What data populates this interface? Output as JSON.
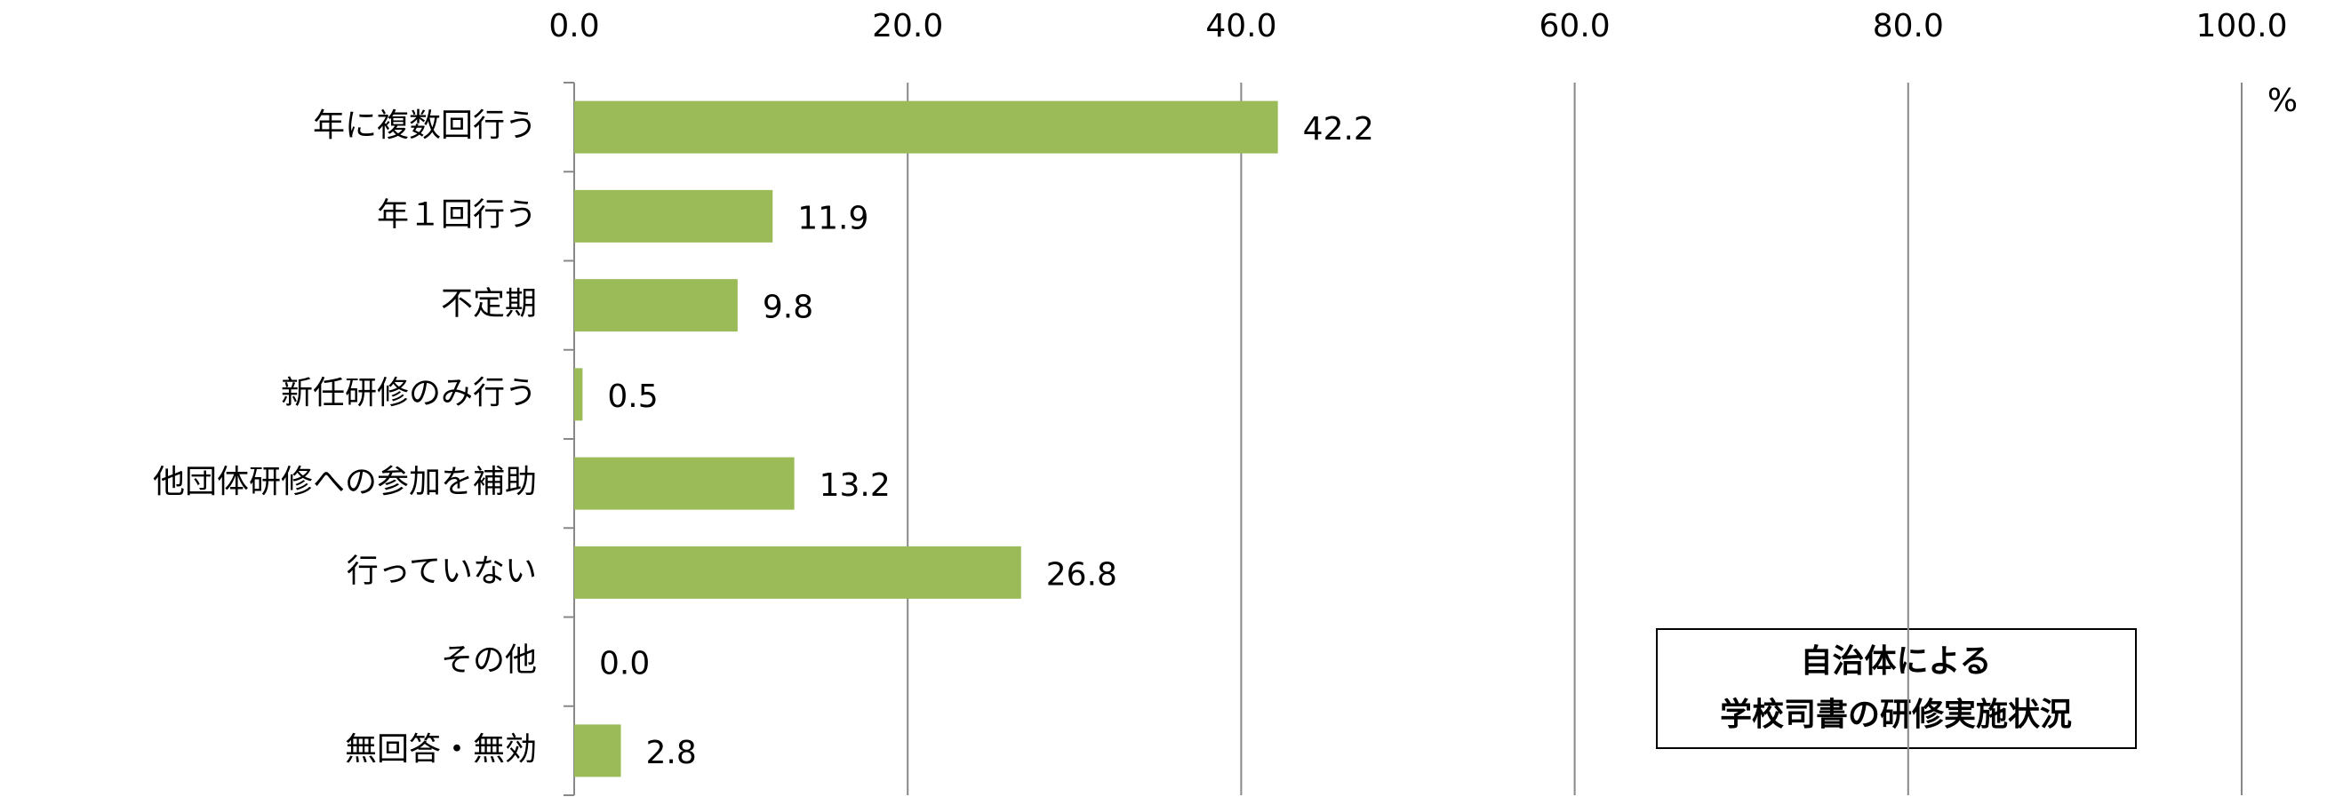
{
  "chart_data": {
    "type": "bar",
    "orientation": "horizontal",
    "title_lines": [
      "自治体による",
      "学校司書の研修実施状況"
    ],
    "unit_label": "%",
    "categories": [
      "年に複数回行う",
      "年１回行う",
      "不定期",
      "新任研修のみ行う",
      "他団体研修への参加を補助",
      "行っていない",
      "その他",
      "無回答・無効"
    ],
    "values": [
      42.2,
      11.9,
      9.8,
      0.5,
      13.2,
      26.8,
      0,
      2.8
    ],
    "value_labels": [
      "42.2",
      "11.9",
      "9.8",
      "0.5",
      "13.2",
      "26.8",
      "0.0",
      "2.8"
    ],
    "color": "#9bbb59",
    "xlim": [
      0,
      100
    ],
    "xticks": [
      {
        "value": 0,
        "label": "0.0"
      },
      {
        "value": 20,
        "label": "20.0"
      },
      {
        "value": 40,
        "label": "40.0"
      },
      {
        "value": 60,
        "label": "60.0"
      },
      {
        "value": 80,
        "label": "80.0"
      },
      {
        "value": 100,
        "label": "100.0"
      }
    ],
    "grid": true
  }
}
